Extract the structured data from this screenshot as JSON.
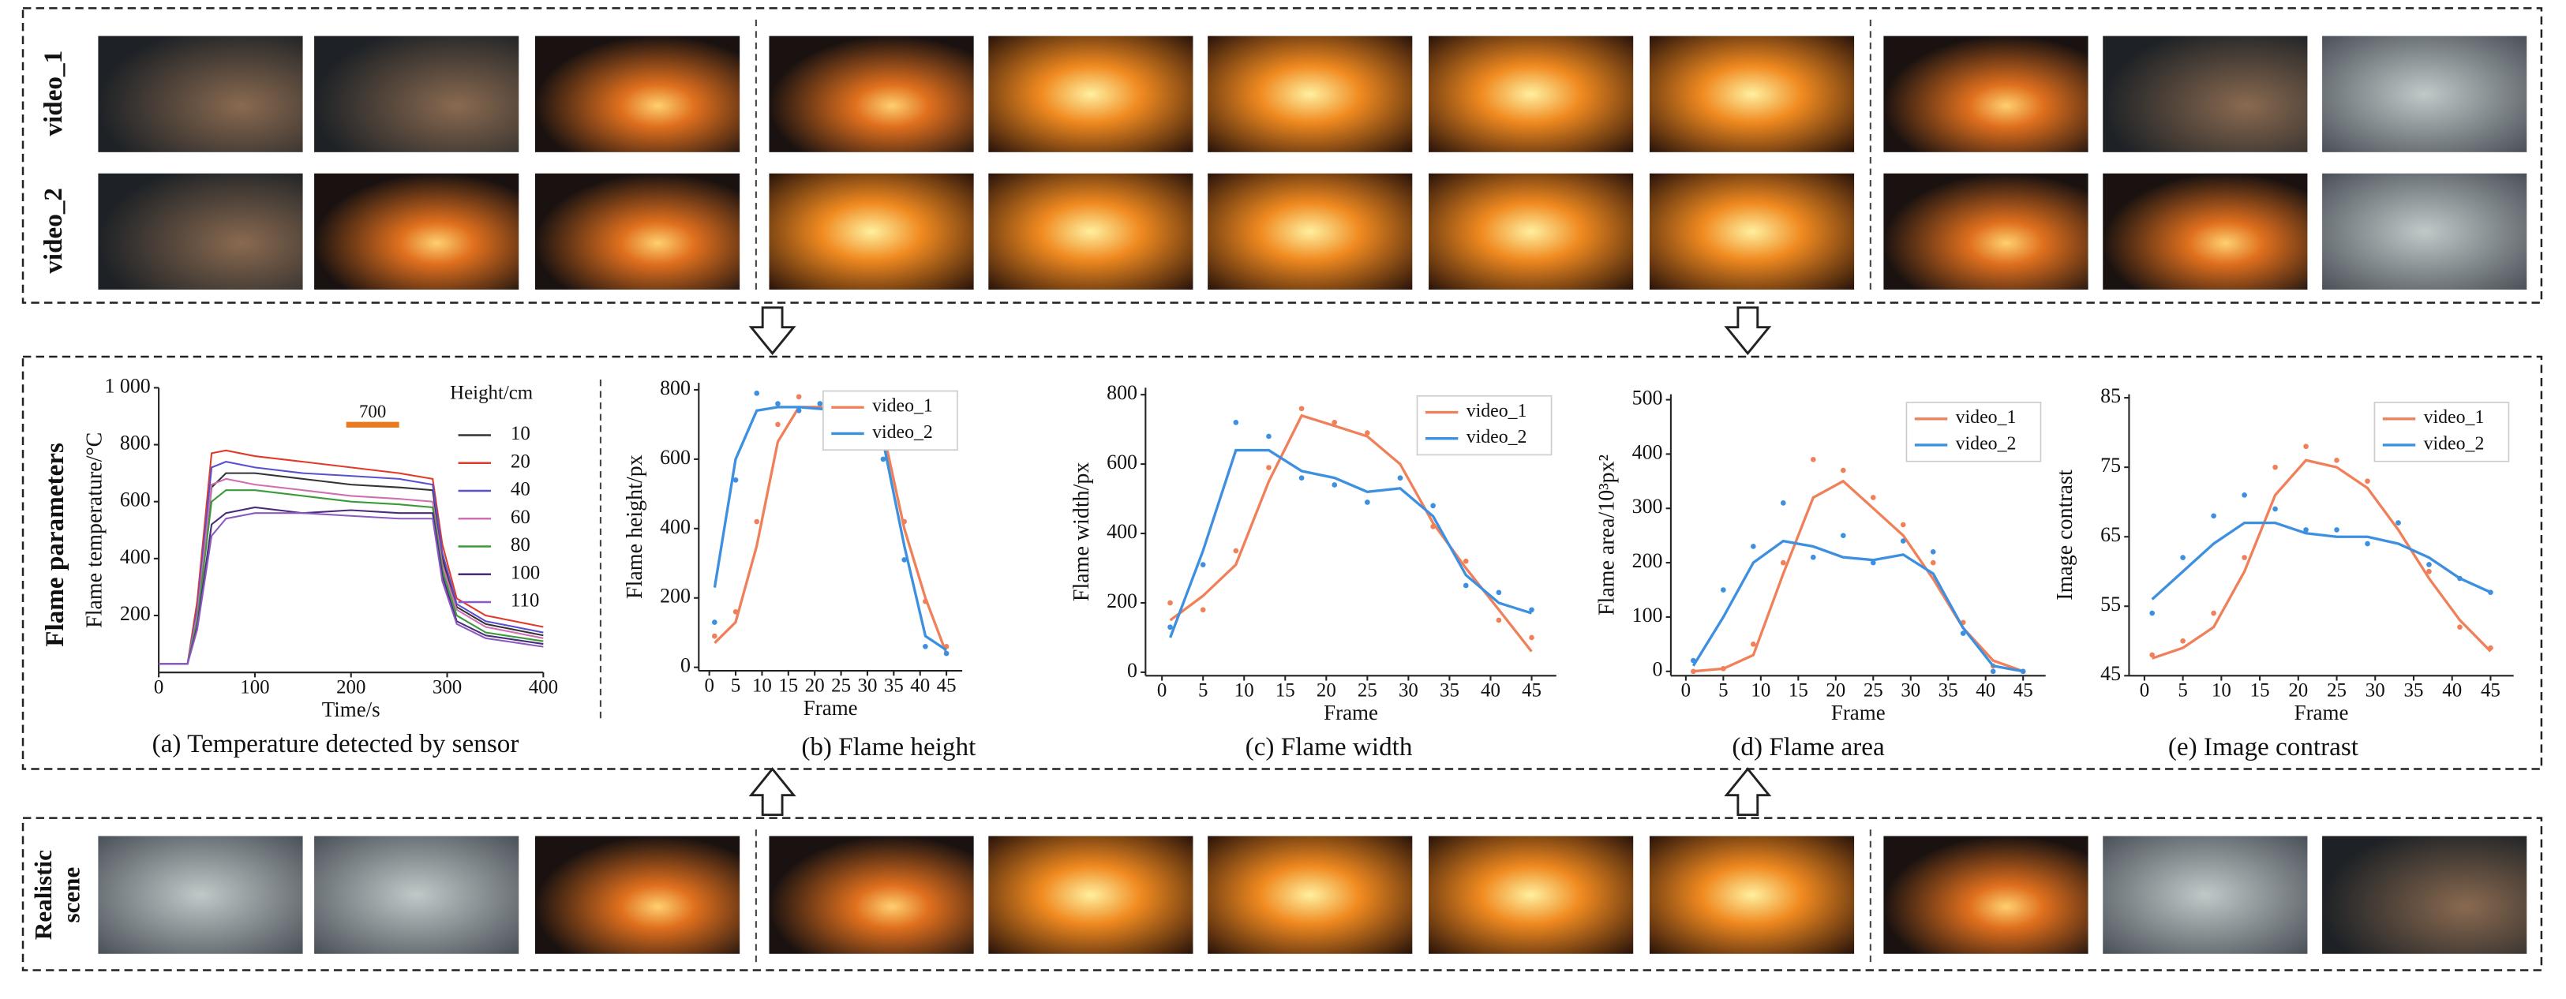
{
  "row_labels": {
    "top": [
      "video_1",
      "video_2"
    ],
    "middle": "Flame parameters",
    "bottom": [
      "Realistic",
      "scene"
    ]
  },
  "chart_data": [
    {
      "type": "line",
      "caption": "(a) Temperature detected by sensor",
      "xlabel": "Time/s",
      "ylabel": "Flame temperature/°C",
      "xlim": [
        0,
        400
      ],
      "xticks": [
        0,
        100,
        200,
        300,
        400
      ],
      "ylim": [
        0,
        1000
      ],
      "yticks": [
        200,
        400,
        600,
        800,
        {
          "value": 1000,
          "label": "1 000"
        }
      ],
      "legend_title": "Height/cm",
      "x": [
        0,
        30,
        40,
        55,
        70,
        100,
        150,
        200,
        250,
        285,
        295,
        310,
        340,
        400
      ],
      "series": [
        {
          "name": "10",
          "color": "#333333",
          "values": [
            30,
            30,
            200,
            650,
            700,
            700,
            680,
            660,
            650,
            640,
            400,
            230,
            170,
            130
          ]
        },
        {
          "name": "20",
          "color": "#e03a2a",
          "values": [
            30,
            30,
            250,
            770,
            780,
            760,
            740,
            720,
            700,
            680,
            450,
            260,
            200,
            160
          ]
        },
        {
          "name": "40",
          "color": "#5a4fcf",
          "values": [
            30,
            30,
            220,
            720,
            740,
            720,
            700,
            690,
            680,
            660,
            420,
            240,
            180,
            140
          ]
        },
        {
          "name": "60",
          "color": "#d070b0",
          "values": [
            30,
            30,
            200,
            660,
            680,
            660,
            640,
            620,
            610,
            600,
            380,
            220,
            160,
            120
          ]
        },
        {
          "name": "80",
          "color": "#3a9a3a",
          "values": [
            30,
            30,
            180,
            600,
            640,
            640,
            620,
            600,
            590,
            580,
            360,
            200,
            140,
            110
          ]
        },
        {
          "name": "100",
          "color": "#4a2a7a",
          "values": [
            30,
            30,
            160,
            520,
            560,
            580,
            560,
            570,
            560,
            560,
            340,
            180,
            130,
            100
          ]
        },
        {
          "name": "110",
          "color": "#8a5ac0",
          "values": [
            30,
            30,
            150,
            480,
            540,
            560,
            560,
            550,
            540,
            540,
            320,
            170,
            120,
            90
          ]
        }
      ],
      "annotation": {
        "text": "700",
        "y": 870,
        "x": [
          195,
          250
        ],
        "color": "#e87a1e"
      }
    },
    {
      "type": "line",
      "caption": "(b) Flame height",
      "xlabel": "Frame",
      "ylabel": "Flame height/px",
      "legend": "upper right",
      "xlim": [
        -2,
        48
      ],
      "xticks": [
        0,
        5,
        10,
        15,
        20,
        25,
        30,
        35,
        40,
        45
      ],
      "ylim": [
        -10,
        820
      ],
      "yticks": [
        0,
        200,
        400,
        600,
        800
      ],
      "x": [
        1,
        5,
        9,
        13,
        17,
        21,
        25,
        29,
        33,
        37,
        41,
        45
      ],
      "series": [
        {
          "name": "video_1",
          "color": "#f0805a",
          "values": [
            70,
            130,
            350,
            650,
            750,
            750,
            745,
            735,
            680,
            400,
            200,
            40
          ],
          "points": [
            90,
            160,
            420,
            700,
            780,
            760,
            740,
            730,
            700,
            420,
            190,
            60
          ]
        },
        {
          "name": "video_2",
          "color": "#3d8fe0",
          "values": [
            230,
            600,
            740,
            750,
            750,
            745,
            740,
            735,
            650,
            350,
            90,
            50
          ],
          "points": [
            130,
            540,
            790,
            760,
            740,
            760,
            740,
            730,
            600,
            310,
            60,
            40
          ]
        }
      ]
    },
    {
      "type": "line",
      "caption": "(c) Flame width",
      "xlabel": "Frame",
      "ylabel": "Flame width/px",
      "legend": "upper right",
      "xlim": [
        -2,
        48
      ],
      "xticks": [
        0,
        5,
        10,
        15,
        20,
        25,
        30,
        35,
        40,
        45
      ],
      "ylim": [
        -10,
        820
      ],
      "yticks": [
        0,
        200,
        400,
        600,
        800
      ],
      "x": [
        1,
        5,
        9,
        13,
        17,
        21,
        25,
        29,
        33,
        37,
        41,
        45
      ],
      "series": [
        {
          "name": "video_1",
          "color": "#f0805a",
          "values": [
            150,
            220,
            310,
            550,
            740,
            710,
            680,
            600,
            430,
            300,
            180,
            60
          ],
          "points": [
            200,
            180,
            350,
            590,
            760,
            720,
            690,
            560,
            420,
            320,
            150,
            100
          ]
        },
        {
          "name": "video_2",
          "color": "#3d8fe0",
          "values": [
            100,
            350,
            640,
            640,
            580,
            560,
            520,
            530,
            450,
            280,
            200,
            170
          ],
          "points": [
            130,
            310,
            720,
            680,
            560,
            540,
            490,
            560,
            480,
            250,
            230,
            180
          ]
        }
      ]
    },
    {
      "type": "line",
      "caption": "(d) Flame area",
      "xlabel": "Frame",
      "ylabel": "Flame area/10³px²",
      "legend": "upper right",
      "xlim": [
        -2,
        48
      ],
      "xticks": [
        0,
        5,
        10,
        15,
        20,
        25,
        30,
        35,
        40,
        45
      ],
      "ylim": [
        -8,
        510
      ],
      "yticks": [
        0,
        100,
        200,
        300,
        400,
        500
      ],
      "x": [
        1,
        5,
        9,
        13,
        17,
        21,
        25,
        29,
        33,
        37,
        41,
        45
      ],
      "series": [
        {
          "name": "video_1",
          "color": "#f0805a",
          "values": [
            0,
            5,
            30,
            180,
            320,
            350,
            300,
            250,
            170,
            80,
            20,
            0
          ],
          "points": [
            0,
            5,
            50,
            200,
            390,
            370,
            320,
            270,
            200,
            90,
            10,
            0
          ]
        },
        {
          "name": "video_2",
          "color": "#3d8fe0",
          "values": [
            10,
            100,
            200,
            240,
            230,
            210,
            205,
            215,
            180,
            80,
            10,
            0
          ],
          "points": [
            20,
            150,
            230,
            310,
            210,
            250,
            200,
            240,
            220,
            70,
            0,
            0
          ]
        }
      ]
    },
    {
      "type": "line",
      "caption": "(e) Image contrast",
      "xlabel": "Frame",
      "ylabel": "Image contrast",
      "legend": "upper right",
      "xlim": [
        -2,
        48
      ],
      "xticks": [
        0,
        5,
        10,
        15,
        20,
        25,
        30,
        35,
        40,
        45
      ],
      "ylim": [
        45,
        85.5
      ],
      "yticks": [
        45,
        55,
        65,
        75,
        85
      ],
      "x": [
        1,
        5,
        9,
        13,
        17,
        21,
        25,
        29,
        33,
        37,
        41,
        45
      ],
      "series": [
        {
          "name": "video_1",
          "color": "#f0805a",
          "values": [
            47.5,
            49,
            52,
            60,
            71,
            76,
            75,
            72,
            66,
            59,
            53,
            48.5
          ],
          "points": [
            48,
            50,
            54,
            62,
            75,
            78,
            76,
            73,
            67,
            60,
            52,
            49
          ]
        },
        {
          "name": "video_2",
          "color": "#3d8fe0",
          "values": [
            56,
            60,
            64,
            67,
            67,
            65.5,
            65,
            65,
            64,
            62,
            59,
            57
          ],
          "points": [
            54,
            62,
            68,
            71,
            69,
            66,
            66,
            64,
            67,
            61,
            59,
            57
          ]
        }
      ]
    }
  ]
}
